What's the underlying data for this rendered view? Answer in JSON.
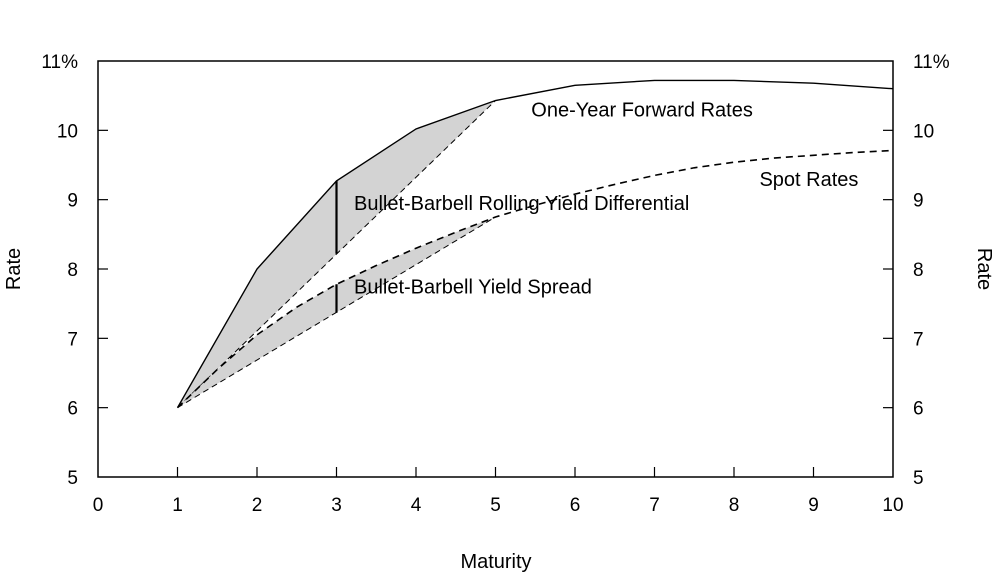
{
  "chart_data": {
    "type": "line",
    "xlabel": "Maturity",
    "ylabel_left": "Rate",
    "ylabel_right": "Rate",
    "xlim": [
      0,
      10
    ],
    "ylim": [
      5,
      11
    ],
    "x_ticks": [
      0,
      1,
      2,
      3,
      4,
      5,
      6,
      7,
      8,
      9,
      10
    ],
    "x_tick_labels": [
      "0",
      "1",
      "2",
      "3",
      "4",
      "5",
      "6",
      "7",
      "8",
      "9",
      "10"
    ],
    "y_ticks": [
      5,
      6,
      7,
      8,
      9,
      10,
      11
    ],
    "y_tick_labels": [
      "5",
      "6",
      "7",
      "8",
      "9",
      "10",
      "11%"
    ],
    "grid": false,
    "series": [
      {
        "name": "One-Year Forward Rates",
        "style": "solid",
        "x": [
          1,
          2,
          3,
          4,
          5,
          6,
          7,
          8,
          9,
          10
        ],
        "y": [
          6.0,
          8.0,
          9.27,
          10.02,
          10.43,
          10.65,
          10.72,
          10.72,
          10.68,
          10.6
        ]
      },
      {
        "name": "Spot Rates",
        "style": "dashed",
        "x": [
          1,
          1.5,
          2,
          2.5,
          3,
          3.5,
          4,
          4.5,
          5,
          5.5,
          6,
          6.5,
          7,
          7.5,
          8,
          8.5,
          9,
          9.5,
          10
        ],
        "y": [
          6.0,
          6.55,
          7.05,
          7.45,
          7.78,
          8.05,
          8.3,
          8.53,
          8.75,
          8.92,
          9.08,
          9.22,
          9.35,
          9.46,
          9.54,
          9.6,
          9.64,
          9.68,
          9.71
        ]
      }
    ],
    "shaded_regions": [
      {
        "upper": {
          "x": [
            1,
            2,
            3,
            4,
            5
          ],
          "y": [
            6.0,
            8.0,
            9.27,
            10.02,
            10.43
          ]
        },
        "lower_chord": {
          "x": [
            1,
            5
          ],
          "y": [
            6.0,
            10.43
          ]
        },
        "fill": "#d3d3d3"
      },
      {
        "upper": {
          "x": [
            1,
            1.5,
            2,
            2.5,
            3,
            3.5,
            4,
            4.5,
            5
          ],
          "y": [
            6.0,
            6.55,
            7.05,
            7.45,
            7.78,
            8.05,
            8.3,
            8.53,
            8.75
          ]
        },
        "lower_chord": {
          "x": [
            1,
            5
          ],
          "y": [
            6.0,
            8.75
          ]
        },
        "fill": "#d3d3d3"
      }
    ],
    "markers": [
      {
        "x": 3,
        "y_from": 8.22,
        "y_to": 9.27
      },
      {
        "x": 3,
        "y_from": 7.37,
        "y_to": 7.78
      }
    ],
    "annotations": [
      {
        "text": "One-Year Forward Rates",
        "x": 5.45,
        "y": 10.2
      },
      {
        "text": "Spot Rates",
        "x": 8.32,
        "y": 9.2
      },
      {
        "text": "Bullet-Barbell Rolling Yield Differential",
        "x": 3.22,
        "y": 8.85
      },
      {
        "text": "Bullet-Barbell Yield Spread",
        "x": 3.22,
        "y": 7.65
      }
    ]
  }
}
